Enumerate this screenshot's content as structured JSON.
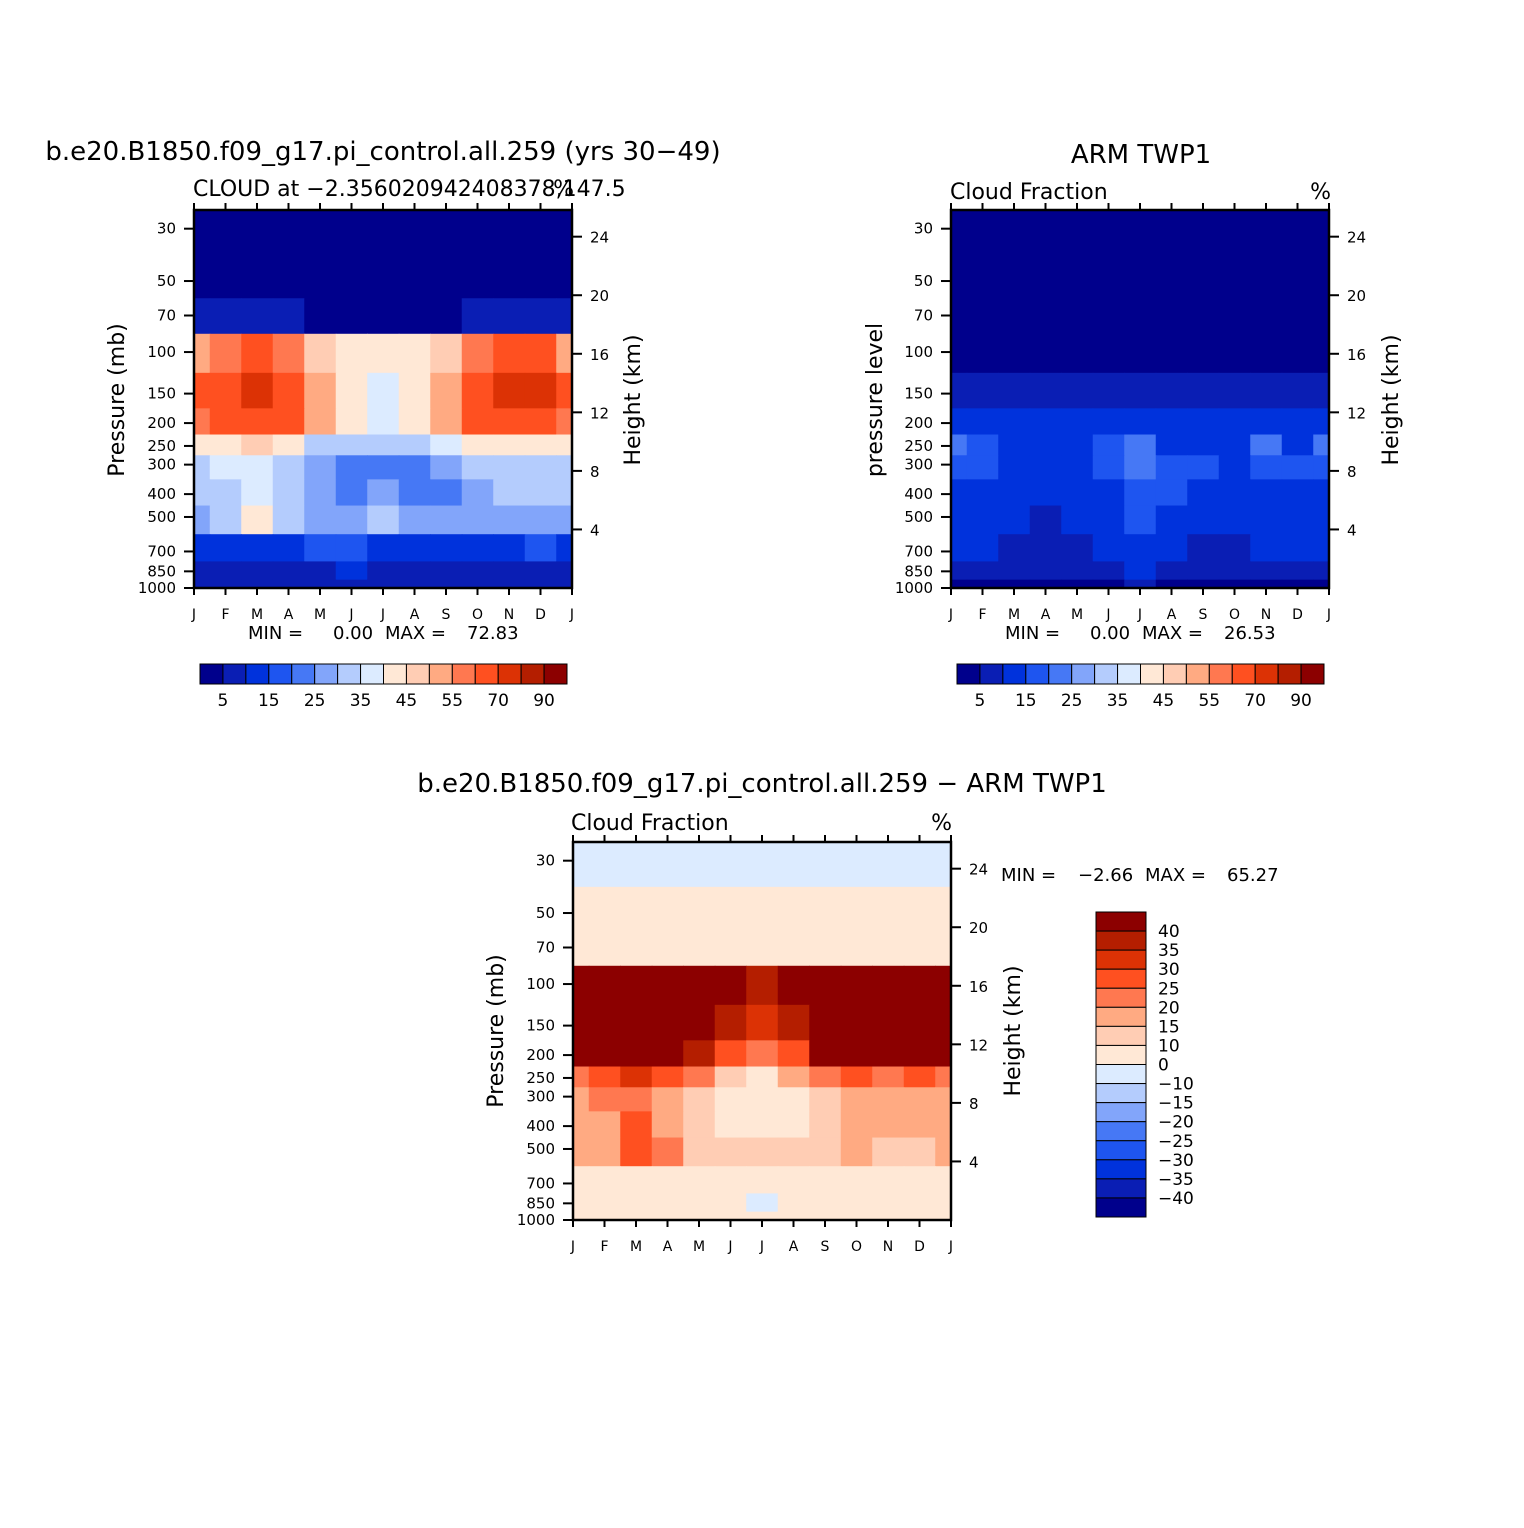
{
  "colors": {
    "cloud_palette": [
      "#00008c",
      "#0a1eb4",
      "#0032dc",
      "#1e55f0",
      "#4678f5",
      "#82a5fa",
      "#b4ccfd",
      "#dcebff",
      "#ffe8d6",
      "#ffcdb4",
      "#ffaa82",
      "#ff7850",
      "#ff5020",
      "#dc3205",
      "#b41e00",
      "#8c0000"
    ],
    "diff_palette": [
      "#00008c",
      "#0a1eb4",
      "#0032dc",
      "#1e55f0",
      "#4678f5",
      "#82a5fa",
      "#b4ccfd",
      "#dcebff",
      "#ffe8d6",
      "#ffcdb4",
      "#ffaa82",
      "#ff7850",
      "#ff5020",
      "#dc3205",
      "#b41e00",
      "#8c0000"
    ]
  },
  "chart_data": [
    {
      "type": "heatmap",
      "title": "b.e20.B1850.f09_g17.pi_control.all.259 (yrs 30−49)",
      "subtitle": "CLOUD at −2.356020942408378,147.5",
      "units": "%",
      "xlabel": "",
      "ylabel": "Pressure (mb)",
      "y2label": "Height (km)",
      "x_ticks": [
        "J",
        "F",
        "M",
        "A",
        "M",
        "J",
        "J",
        "A",
        "S",
        "O",
        "N",
        "D",
        "J"
      ],
      "y_ticks": [
        "30",
        "50",
        "70",
        "100",
        "150",
        "200",
        "250",
        "300",
        "400",
        "500",
        "700",
        "850",
        "1000"
      ],
      "y2_ticks": [
        "24",
        "20",
        "16",
        "12",
        "8",
        "4"
      ],
      "ylim": [
        1000,
        25
      ],
      "stats": {
        "min_label": "MIN =",
        "min": "0.00",
        "max_label": "MAX =",
        "max": "72.83"
      },
      "levels": [
        0,
        5,
        10,
        15,
        20,
        25,
        30,
        35,
        40,
        45,
        50,
        55,
        60,
        70,
        80,
        90
      ],
      "level_labels": [
        "5",
        "15",
        "25",
        "35",
        "45",
        "55",
        "70",
        "90"
      ],
      "values": [
        [
          2,
          2,
          2,
          2,
          2,
          2,
          2,
          2,
          2,
          2,
          2,
          2,
          2
        ],
        [
          2,
          2,
          2,
          2,
          2,
          2,
          2,
          2,
          2,
          2,
          2,
          2,
          2
        ],
        [
          7,
          7,
          6,
          5,
          4,
          4,
          4,
          4,
          4,
          5,
          6,
          7,
          7
        ],
        [
          52,
          58,
          62,
          55,
          48,
          42,
          40,
          42,
          48,
          56,
          64,
          62,
          52
        ],
        [
          65,
          68,
          72,
          66,
          54,
          44,
          38,
          42,
          54,
          66,
          70,
          70,
          65
        ],
        [
          58,
          62,
          66,
          60,
          50,
          40,
          36,
          40,
          52,
          60,
          64,
          62,
          58
        ],
        [
          42,
          44,
          46,
          40,
          34,
          30,
          30,
          32,
          36,
          40,
          42,
          40,
          42
        ],
        [
          34,
          36,
          38,
          30,
          26,
          22,
          24,
          22,
          26,
          30,
          32,
          34,
          34
        ],
        [
          30,
          32,
          38,
          30,
          26,
          22,
          26,
          22,
          24,
          28,
          30,
          30,
          30
        ],
        [
          28,
          30,
          40,
          30,
          26,
          28,
          30,
          28,
          26,
          28,
          26,
          26,
          28
        ],
        [
          14,
          13,
          12,
          14,
          16,
          16,
          14,
          14,
          14,
          14,
          14,
          16,
          14
        ],
        [
          9,
          8,
          8,
          9,
          8,
          11,
          9,
          8,
          8,
          8,
          8,
          9,
          9
        ],
        [
          7,
          7,
          7,
          7,
          7,
          8,
          7,
          7,
          7,
          7,
          7,
          7,
          7
        ]
      ]
    },
    {
      "type": "heatmap",
      "title": "ARM TWP1",
      "subtitle": "Cloud Fraction",
      "units": "%",
      "xlabel": "",
      "ylabel": "pressure level",
      "y2label": "Height (km)",
      "x_ticks": [
        "J",
        "F",
        "M",
        "A",
        "M",
        "J",
        "J",
        "A",
        "S",
        "O",
        "N",
        "D",
        "J"
      ],
      "y_ticks": [
        "30",
        "50",
        "70",
        "100",
        "150",
        "200",
        "250",
        "300",
        "400",
        "500",
        "700",
        "850",
        "1000"
      ],
      "y2_ticks": [
        "24",
        "20",
        "16",
        "12",
        "8",
        "4"
      ],
      "ylim": [
        1000,
        25
      ],
      "stats": {
        "min_label": "MIN =",
        "min": "0.00",
        "max_label": "MAX =",
        "max": "26.53"
      },
      "levels": [
        0,
        5,
        10,
        15,
        20,
        25,
        30,
        35,
        40,
        45,
        50,
        55,
        60,
        70,
        80,
        90
      ],
      "level_labels": [
        "5",
        "15",
        "25",
        "35",
        "45",
        "55",
        "70",
        "90"
      ],
      "values": [
        [
          0,
          0,
          0,
          0,
          0,
          0,
          0,
          0,
          0,
          0,
          0,
          0,
          0
        ],
        [
          0,
          0,
          0,
          0,
          0,
          0,
          0,
          0,
          0,
          0,
          0,
          0,
          0
        ],
        [
          0,
          0,
          0,
          0,
          0,
          0,
          0,
          0,
          0,
          0,
          0,
          0,
          0
        ],
        [
          2,
          2,
          2,
          2,
          2,
          2,
          2,
          2,
          2,
          2,
          2,
          2,
          2
        ],
        [
          6,
          7,
          7,
          6,
          6,
          5,
          5,
          5,
          6,
          6,
          7,
          7,
          6
        ],
        [
          12,
          11,
          13,
          12,
          12,
          13,
          14,
          13,
          12,
          13,
          12,
          12,
          12
        ],
        [
          20,
          18,
          14,
          13,
          12,
          16,
          24,
          14,
          14,
          14,
          20,
          14,
          20
        ],
        [
          18,
          16,
          14,
          12,
          13,
          16,
          22,
          17,
          16,
          14,
          17,
          15,
          18
        ],
        [
          14,
          13,
          12,
          11,
          12,
          14,
          18,
          15,
          14,
          13,
          13,
          12,
          14
        ],
        [
          13,
          12,
          12,
          9,
          13,
          14,
          16,
          14,
          13,
          12,
          12,
          12,
          13
        ],
        [
          11,
          10,
          8,
          7,
          9,
          10,
          12,
          11,
          8,
          8,
          10,
          11,
          11
        ],
        [
          8,
          7,
          7,
          6,
          7,
          7,
          10,
          8,
          7,
          7,
          8,
          8,
          8
        ],
        [
          4,
          4,
          4,
          4,
          4,
          4,
          5,
          4,
          4,
          4,
          4,
          4,
          4
        ]
      ]
    },
    {
      "type": "heatmap",
      "title": "b.e20.B1850.f09_g17.pi_control.all.259 − ARM TWP1",
      "subtitle": "Cloud Fraction",
      "units": "%",
      "xlabel": "",
      "ylabel": "Pressure (mb)",
      "y2label": "Height (km)",
      "x_ticks": [
        "J",
        "F",
        "M",
        "A",
        "M",
        "J",
        "J",
        "A",
        "S",
        "O",
        "N",
        "D",
        "J"
      ],
      "y_ticks": [
        "30",
        "50",
        "70",
        "100",
        "150",
        "200",
        "250",
        "300",
        "400",
        "500",
        "700",
        "850",
        "1000"
      ],
      "y2_ticks": [
        "24",
        "20",
        "16",
        "12",
        "8",
        "4"
      ],
      "ylim": [
        1000,
        25
      ],
      "stats": {
        "min_label": "MIN =",
        "min": "−2.66",
        "max_label": "MAX =",
        "max": "65.27"
      },
      "levels": [
        -45,
        -40,
        -35,
        -30,
        -25,
        -20,
        -15,
        -10,
        0,
        10,
        15,
        20,
        25,
        30,
        35,
        40
      ],
      "level_labels": [
        "40",
        "35",
        "30",
        "25",
        "20",
        "15",
        "10",
        "0",
        "−10",
        "−15",
        "−20",
        "−25",
        "−30",
        "−35",
        "−40"
      ],
      "values": [
        [
          -2,
          -2,
          -2,
          -2,
          -2,
          -2,
          -2,
          -2,
          -2,
          -2,
          -2,
          -2,
          -2
        ],
        [
          3,
          3,
          3,
          3,
          3,
          3,
          3,
          3,
          3,
          3,
          3,
          3,
          3
        ],
        [
          7,
          7,
          6,
          5,
          4,
          4,
          4,
          4,
          4,
          5,
          6,
          7,
          7
        ],
        [
          50,
          56,
          60,
          53,
          46,
          40,
          38,
          40,
          46,
          54,
          62,
          60,
          50
        ],
        [
          59,
          61,
          65,
          60,
          48,
          39,
          33,
          37,
          48,
          60,
          63,
          63,
          59
        ],
        [
          46,
          51,
          53,
          48,
          38,
          27,
          22,
          27,
          40,
          47,
          52,
          50,
          46
        ],
        [
          22,
          26,
          32,
          27,
          22,
          14,
          6,
          18,
          22,
          26,
          22,
          26,
          22
        ],
        [
          16,
          20,
          24,
          18,
          13,
          6,
          2,
          5,
          10,
          16,
          15,
          19,
          16
        ],
        [
          16,
          19,
          26,
          19,
          14,
          8,
          8,
          7,
          10,
          15,
          17,
          18,
          16
        ],
        [
          15,
          18,
          28,
          21,
          13,
          14,
          14,
          14,
          13,
          16,
          14,
          14,
          15
        ],
        [
          3,
          3,
          4,
          7,
          7,
          6,
          2,
          3,
          6,
          6,
          4,
          5,
          3
        ],
        [
          1,
          1,
          1,
          3,
          1,
          4,
          -1,
          0,
          1,
          1,
          0,
          1,
          1
        ],
        [
          3,
          3,
          3,
          3,
          3,
          4,
          2,
          3,
          3,
          3,
          3,
          3,
          3
        ]
      ]
    }
  ]
}
